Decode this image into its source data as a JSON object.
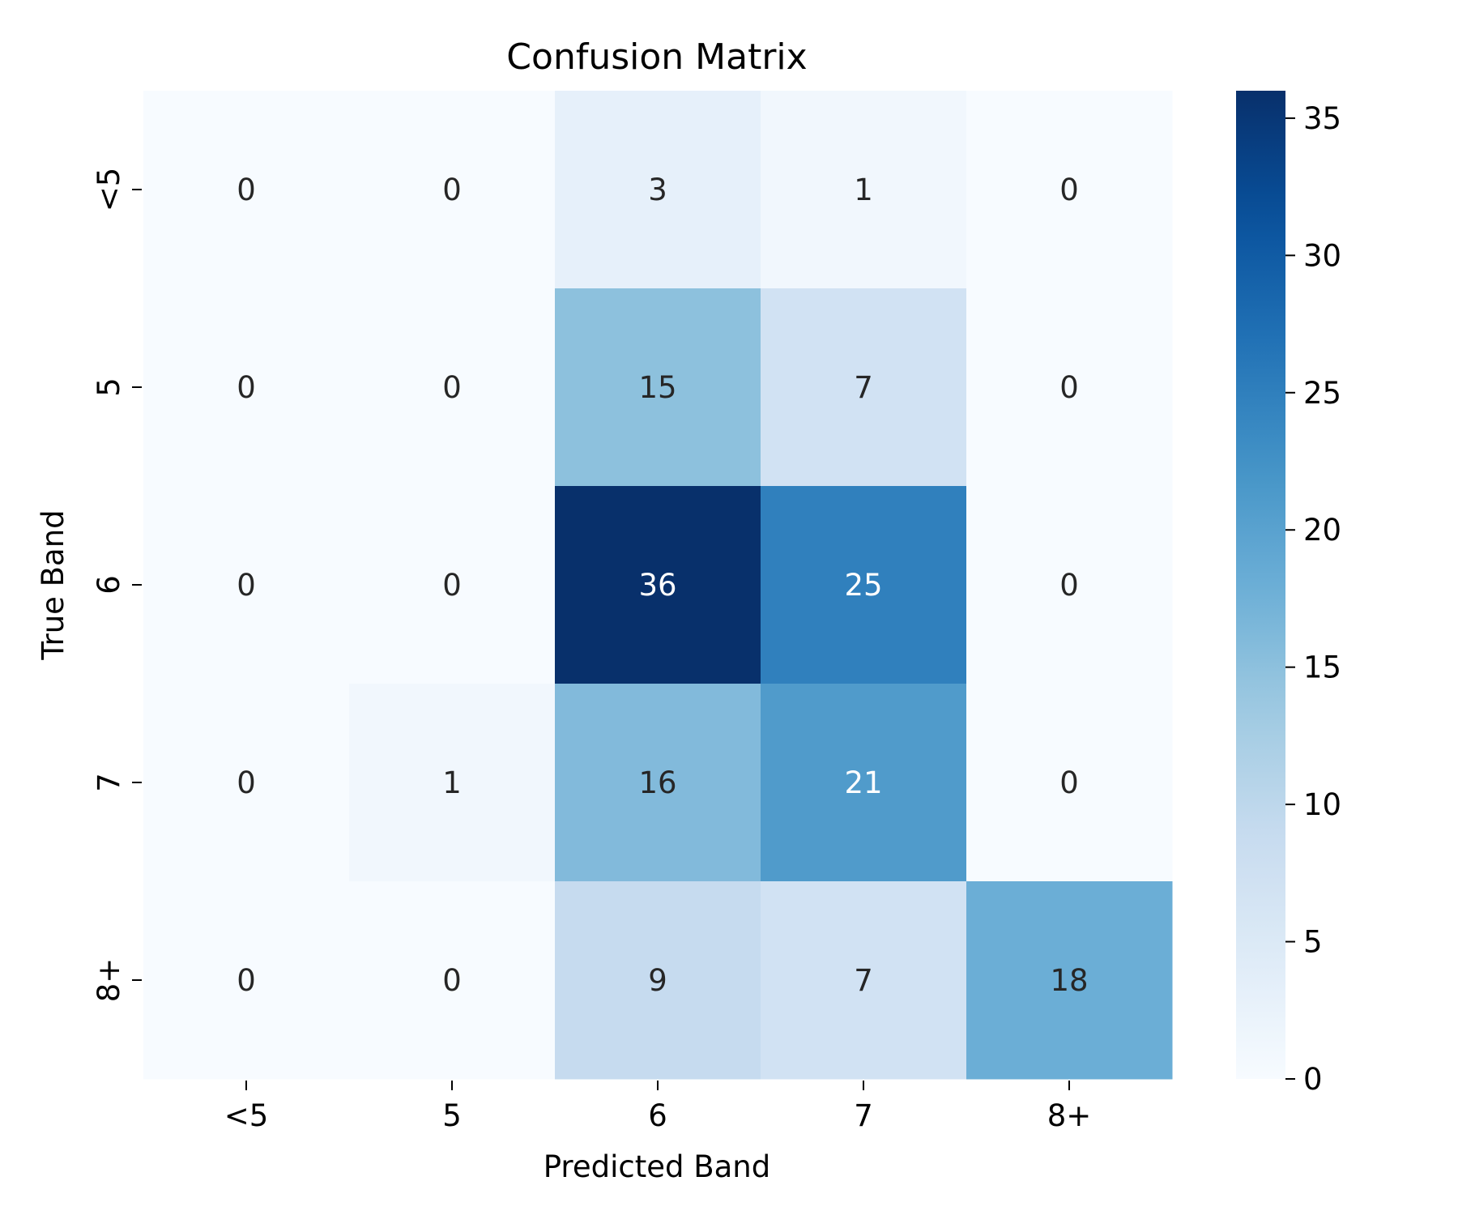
{
  "chart_data": {
    "type": "heatmap",
    "title": "Confusion Matrix",
    "xlabel": "Predicted Band",
    "ylabel": "True Band",
    "x_categories": [
      "<5",
      "5",
      "6",
      "7",
      "8+"
    ],
    "y_categories": [
      "<5",
      "5",
      "6",
      "7",
      "8+"
    ],
    "values": [
      [
        0,
        0,
        3,
        1,
        0
      ],
      [
        0,
        0,
        15,
        7,
        0
      ],
      [
        0,
        0,
        36,
        25,
        0
      ],
      [
        0,
        1,
        16,
        21,
        0
      ],
      [
        0,
        0,
        9,
        7,
        18
      ]
    ],
    "colormap": "Blues",
    "vmin": 0,
    "vmax": 36,
    "colorbar_ticks": [
      0,
      5,
      10,
      15,
      20,
      25,
      30,
      35
    ]
  }
}
